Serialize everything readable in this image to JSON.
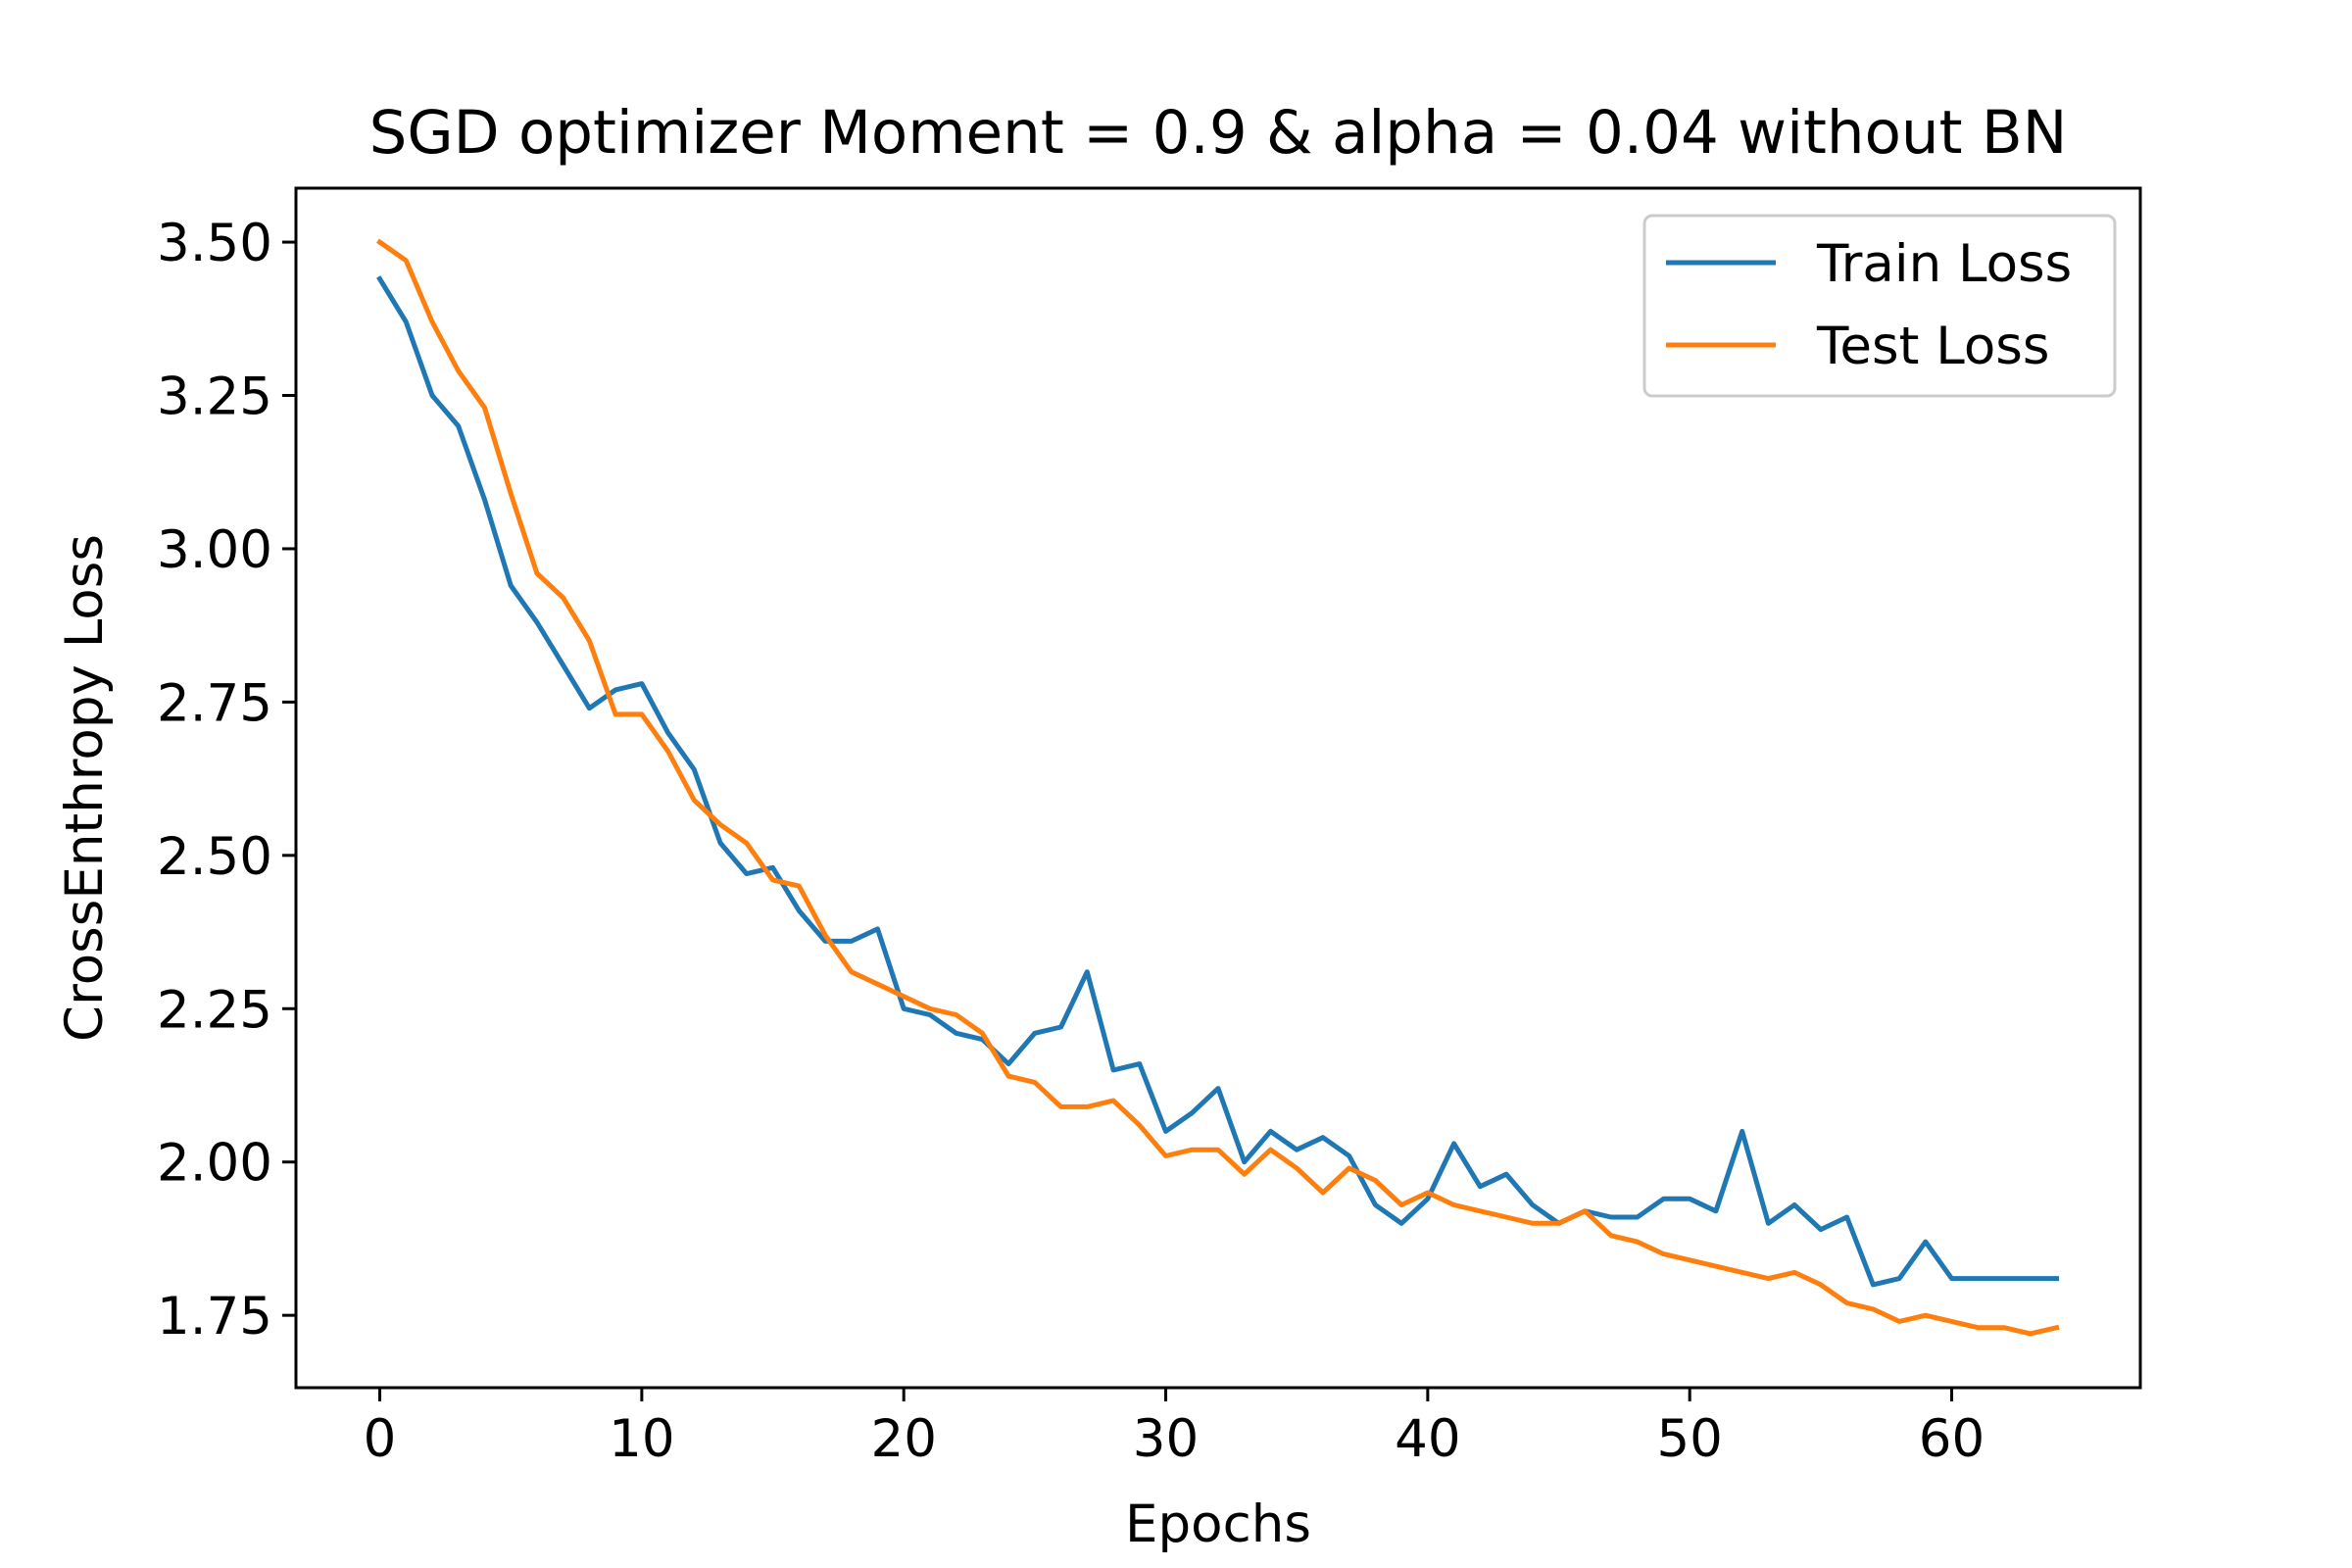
{
  "chart_data": {
    "type": "line",
    "title": "SGD optimizer Moment = 0.9 & alpha = 0.04 without BN",
    "xlabel": "Epochs",
    "ylabel": "CrossEnthropy Loss",
    "xlim": [
      -3.2,
      67.2
    ],
    "ylim": [
      1.632,
      3.588
    ],
    "xticks": [
      "0",
      "10",
      "20",
      "30",
      "40",
      "50",
      "60"
    ],
    "yticks": [
      "1.75",
      "2.00",
      "2.25",
      "2.50",
      "2.75",
      "3.00",
      "3.25",
      "3.50"
    ],
    "grid": false,
    "legend_position": "top-right",
    "series": [
      {
        "name": "Train Loss",
        "color": "#1f77b4",
        "x": [
          0,
          1,
          2,
          3,
          4,
          5,
          6,
          7,
          8,
          9,
          10,
          11,
          12,
          13,
          14,
          15,
          16,
          17,
          18,
          19,
          20,
          21,
          22,
          23,
          24,
          25,
          26,
          27,
          28,
          29,
          30,
          31,
          32,
          33,
          34,
          35,
          36,
          37,
          38,
          39,
          40,
          41,
          42,
          43,
          44,
          45,
          46,
          47,
          48,
          49,
          50,
          51,
          52,
          53,
          54,
          55,
          56,
          57,
          58,
          59,
          60,
          61,
          62,
          63,
          64
        ],
        "values": [
          3.44,
          3.37,
          3.25,
          3.2,
          3.08,
          2.94,
          2.88,
          2.81,
          2.74,
          2.77,
          2.78,
          2.7,
          2.64,
          2.52,
          2.47,
          2.48,
          2.41,
          2.36,
          2.36,
          2.38,
          2.25,
          2.24,
          2.21,
          2.2,
          2.16,
          2.21,
          2.22,
          2.31,
          2.15,
          2.16,
          2.05,
          2.08,
          2.12,
          2.0,
          2.05,
          2.02,
          2.04,
          2.01,
          1.93,
          1.9,
          1.94,
          2.03,
          1.96,
          1.98,
          1.93,
          1.9,
          1.92,
          1.91,
          1.91,
          1.94,
          1.94,
          1.92,
          2.05,
          1.9,
          1.93,
          1.89,
          1.91,
          1.8,
          1.81,
          1.87,
          1.81,
          1.81,
          1.81,
          1.81,
          1.81
        ]
      },
      {
        "name": "Test Loss",
        "color": "#ff7f0e",
        "x": [
          0,
          1,
          2,
          3,
          4,
          5,
          6,
          7,
          8,
          9,
          10,
          11,
          12,
          13,
          14,
          15,
          16,
          17,
          18,
          19,
          20,
          21,
          22,
          23,
          24,
          25,
          26,
          27,
          28,
          29,
          30,
          31,
          32,
          33,
          34,
          35,
          36,
          37,
          38,
          39,
          40,
          41,
          42,
          43,
          44,
          45,
          46,
          47,
          48,
          49,
          50,
          51,
          52,
          53,
          54,
          55,
          56,
          57,
          58,
          59,
          60,
          61,
          62,
          63,
          64
        ],
        "values": [
          3.5,
          3.47,
          3.37,
          3.29,
          3.23,
          3.09,
          2.96,
          2.92,
          2.85,
          2.73,
          2.73,
          2.67,
          2.59,
          2.55,
          2.52,
          2.46,
          2.45,
          2.37,
          2.31,
          2.29,
          2.27,
          2.25,
          2.24,
          2.21,
          2.14,
          2.13,
          2.09,
          2.09,
          2.1,
          2.06,
          2.01,
          2.02,
          2.02,
          1.98,
          2.02,
          1.99,
          1.95,
          1.99,
          1.97,
          1.93,
          1.95,
          1.93,
          1.92,
          1.91,
          1.9,
          1.9,
          1.92,
          1.88,
          1.87,
          1.85,
          1.84,
          1.83,
          1.82,
          1.81,
          1.82,
          1.8,
          1.77,
          1.76,
          1.74,
          1.75,
          1.74,
          1.73,
          1.73,
          1.72,
          1.73
        ]
      }
    ]
  }
}
